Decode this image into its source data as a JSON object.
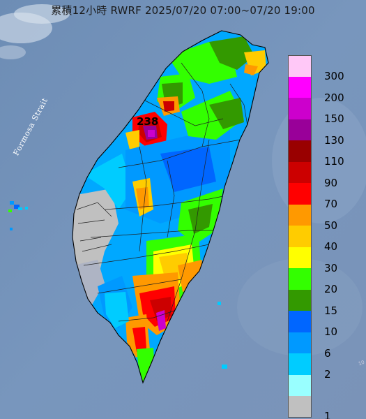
{
  "title": "累積12小時 RWRF 2025/07/20 07:00~07/20 19:00",
  "water_label": "Formosa Strait",
  "max_value": "238",
  "legend": {
    "items": [
      {
        "label": "300",
        "color": "#ffc8f7"
      },
      {
        "label": "200",
        "color": "#ff00ff"
      },
      {
        "label": "150",
        "color": "#cc00cc"
      },
      {
        "label": "130",
        "color": "#990099"
      },
      {
        "label": "110",
        "color": "#990000"
      },
      {
        "label": "90",
        "color": "#cc0000"
      },
      {
        "label": "70",
        "color": "#ff0000"
      },
      {
        "label": "50",
        "color": "#ff9900"
      },
      {
        "label": "40",
        "color": "#ffcc00"
      },
      {
        "label": "30",
        "color": "#ffff00"
      },
      {
        "label": "20",
        "color": "#33ff00"
      },
      {
        "label": "15",
        "color": "#339900"
      },
      {
        "label": "10",
        "color": "#0066ff"
      },
      {
        "label": "6",
        "color": "#0099ff"
      },
      {
        "label": "2",
        "color": "#00ccff"
      },
      {
        "label": "",
        "color": "#99ffff"
      },
      {
        "label": "1",
        "color": "#c0c0c0"
      }
    ]
  }
}
